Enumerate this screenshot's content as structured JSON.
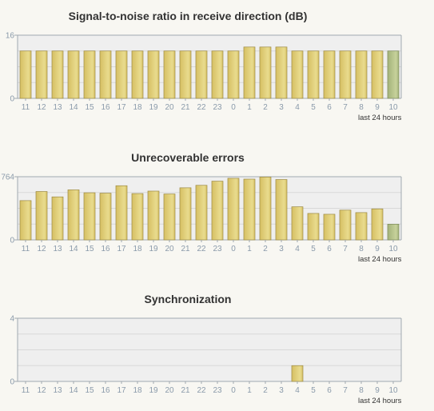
{
  "charts_meta": {
    "period_label": "last 24 hours"
  },
  "colors": {
    "bar_gold": "#d6bf63",
    "bar_gold_light": "#e9dc8e",
    "bar_current": "#a3b27a",
    "bar_current_light": "#c7d29b",
    "plot_bg": "#efefef",
    "grid": "#d8d8d8",
    "axis": "#a0a8b0"
  },
  "chart_data": [
    {
      "type": "bar",
      "title": "Signal-to-noise ratio in receive direction (dB)",
      "xlabel": "",
      "ylabel": "",
      "categories": [
        "11",
        "12",
        "13",
        "14",
        "15",
        "16",
        "17",
        "18",
        "19",
        "20",
        "21",
        "22",
        "23",
        "0",
        "1",
        "2",
        "3",
        "4",
        "5",
        "6",
        "7",
        "8",
        "9",
        "10"
      ],
      "values": [
        12,
        12,
        12,
        12,
        12,
        12,
        12,
        12,
        12,
        12,
        12,
        12,
        12,
        12,
        13,
        13,
        13,
        12,
        12,
        12,
        12,
        12,
        12,
        12
      ],
      "ylim": [
        0,
        16
      ],
      "yticks": [
        0,
        16
      ],
      "highlight_last": true,
      "grid": true
    },
    {
      "type": "bar",
      "title": "Unrecoverable errors",
      "xlabel": "",
      "ylabel": "",
      "categories": [
        "11",
        "12",
        "13",
        "14",
        "15",
        "16",
        "17",
        "18",
        "19",
        "20",
        "21",
        "22",
        "23",
        "0",
        "1",
        "2",
        "3",
        "4",
        "5",
        "6",
        "7",
        "8",
        "9",
        "10"
      ],
      "values": [
        475,
        585,
        520,
        605,
        570,
        565,
        655,
        560,
        590,
        555,
        630,
        660,
        710,
        745,
        735,
        760,
        730,
        400,
        320,
        310,
        360,
        330,
        375,
        190
      ],
      "ylim": [
        0,
        764
      ],
      "yticks": [
        0,
        764
      ],
      "highlight_last": true,
      "grid": true
    },
    {
      "type": "bar",
      "title": "Synchronization",
      "xlabel": "",
      "ylabel": "",
      "categories": [
        "11",
        "12",
        "13",
        "14",
        "15",
        "16",
        "17",
        "18",
        "19",
        "20",
        "21",
        "22",
        "23",
        "0",
        "1",
        "2",
        "3",
        "4",
        "5",
        "6",
        "7",
        "8",
        "9",
        "10"
      ],
      "values": [
        0,
        0,
        0,
        0,
        0,
        0,
        0,
        0,
        0,
        0,
        0,
        0,
        0,
        0,
        0,
        0,
        0,
        1,
        0,
        0,
        0,
        0,
        0,
        0
      ],
      "ylim": [
        0,
        4
      ],
      "yticks": [
        0,
        4
      ],
      "highlight_last": false,
      "grid": true
    }
  ]
}
